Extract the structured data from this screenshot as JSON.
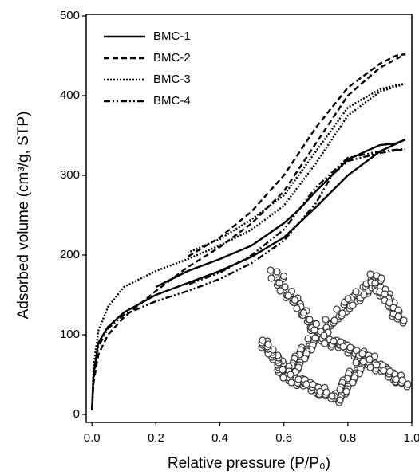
{
  "chart_data": {
    "type": "line",
    "xlabel": "Relative pressure (P/P₀)",
    "ylabel": "Adsorbed volume (cm³/g, STP)",
    "xlim": [
      -0.018,
      1.0
    ],
    "ylim": [
      -10,
      502
    ],
    "xticks": [
      {
        "value": 0,
        "label": "0.0"
      },
      0.2,
      0.4,
      0.6,
      0.8,
      {
        "value": 1,
        "label": "1.0"
      }
    ],
    "yticks": [
      0,
      100,
      200,
      300,
      400,
      500
    ],
    "legend": "upper left",
    "series": [
      {
        "name": "BMC-1",
        "color": "#000000",
        "style": "solid",
        "x": [
          0,
          0.005,
          0.02,
          0.05,
          0.1,
          0.2,
          0.3,
          0.4,
          0.5,
          0.6,
          0.7,
          0.8,
          0.9,
          0.98,
          0.95,
          0.9,
          0.8,
          0.7,
          0.65,
          0.6,
          0.5,
          0.4,
          0.3,
          0.2
        ],
        "values": [
          5,
          50,
          90,
          110,
          128,
          150,
          165,
          180,
          198,
          222,
          260,
          300,
          330,
          345,
          340,
          338,
          320,
          280,
          258,
          240,
          212,
          195,
          180,
          160
        ]
      },
      {
        "name": "BMC-2",
        "color": "#000000",
        "style": "dashed",
        "x": [
          0,
          0.005,
          0.02,
          0.05,
          0.1,
          0.2,
          0.3,
          0.4,
          0.5,
          0.6,
          0.7,
          0.8,
          0.9,
          0.98,
          0.95,
          0.9,
          0.8,
          0.7,
          0.6,
          0.5,
          0.4,
          0.3
        ],
        "values": [
          5,
          40,
          75,
          100,
          122,
          155,
          185,
          210,
          240,
          280,
          340,
          400,
          435,
          452,
          450,
          440,
          410,
          360,
          300,
          255,
          222,
          198
        ]
      },
      {
        "name": "BMC-3",
        "color": "#000000",
        "style": "dotted",
        "x": [
          0,
          0.005,
          0.02,
          0.05,
          0.1,
          0.2,
          0.3,
          0.4,
          0.5,
          0.6,
          0.7,
          0.8,
          0.9,
          0.98,
          0.95,
          0.9,
          0.8,
          0.7,
          0.6,
          0.5,
          0.4,
          0.3
        ],
        "values": [
          5,
          60,
          105,
          135,
          160,
          180,
          195,
          212,
          232,
          262,
          315,
          375,
          405,
          415,
          413,
          408,
          385,
          330,
          275,
          245,
          220,
          203
        ]
      },
      {
        "name": "BMC-4",
        "color": "#000000",
        "style": "dashdotdot",
        "x": [
          0,
          0.005,
          0.02,
          0.05,
          0.1,
          0.2,
          0.3,
          0.4,
          0.5,
          0.6,
          0.7,
          0.75,
          0.8,
          0.9,
          0.98,
          0.95,
          0.9,
          0.8,
          0.7,
          0.6,
          0.5,
          0.4,
          0.3
        ],
        "values": [
          5,
          45,
          85,
          108,
          125,
          142,
          155,
          170,
          190,
          218,
          265,
          300,
          318,
          328,
          333,
          332,
          330,
          322,
          285,
          232,
          200,
          178,
          163
        ]
      }
    ]
  }
}
